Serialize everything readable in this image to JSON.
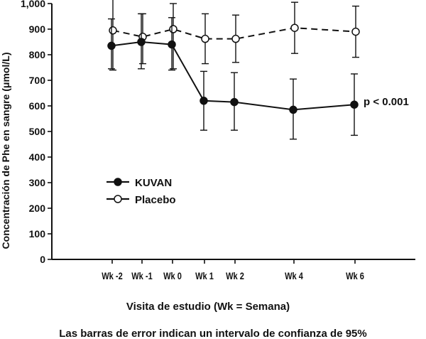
{
  "chart_data": {
    "type": "line",
    "categories": [
      "Wk -2",
      "Wk -1",
      "Wk 0",
      "Wk 1",
      "Wk 2",
      "Wk 4",
      "Wk 6"
    ],
    "x_weeks": [
      -2,
      -1,
      0,
      1,
      2,
      4,
      6
    ],
    "ylabel": "Concentración de Phe en sangre (μmol/L)",
    "xlabel": "Visita de estudio (Wk = Semana)",
    "footnote": "Las barras de error indican un intervalo de confianza de 95%",
    "annotation": "p < 0.001",
    "ylim": [
      0,
      1000
    ],
    "yticks": [
      0,
      100,
      200,
      300,
      400,
      500,
      600,
      700,
      800,
      900,
      1000
    ],
    "ytick_labels": [
      "0",
      "100",
      "200",
      "300",
      "400",
      "500",
      "600",
      "700",
      "800",
      "900",
      "1,000"
    ],
    "grid": false,
    "legend_position": "center-left",
    "series": [
      {
        "name": "KUVAN",
        "marker": "filled-circle",
        "line_style": "solid",
        "values": [
          835,
          850,
          840,
          620,
          615,
          585,
          605
        ],
        "ci_low": [
          745,
          745,
          740,
          505,
          505,
          470,
          485
        ],
        "ci_high": [
          940,
          960,
          945,
          735,
          730,
          705,
          725
        ]
      },
      {
        "name": "Placebo",
        "marker": "open-circle",
        "line_style": "dashed",
        "values": [
          895,
          870,
          900,
          862,
          862,
          905,
          890
        ],
        "ci_low": [
          740,
          765,
          745,
          765,
          770,
          805,
          790
        ],
        "ci_high": [
          1050,
          960,
          1000,
          960,
          955,
          1005,
          990
        ]
      }
    ],
    "colors": {
      "axis": "#111111",
      "line": "#111111",
      "placebo_fill": "#ffffff"
    }
  }
}
